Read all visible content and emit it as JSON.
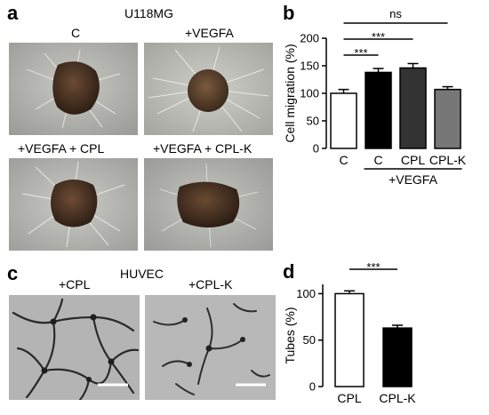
{
  "panels": {
    "a": {
      "label": "a",
      "cell_line": "U118MG",
      "conditions": [
        "C",
        "+VEGFA",
        "+VEGFA + CPL",
        "+VEGFA + CPL-K"
      ]
    },
    "b": {
      "label": "b",
      "sig_ns": "ns",
      "sig_1": "***",
      "sig_2": "***",
      "group_label": "+VEGFA"
    },
    "c": {
      "label": "c",
      "cell_line": "HUVEC",
      "conditions": [
        "+CPL",
        "+CPL-K"
      ]
    },
    "d": {
      "label": "d",
      "sig": "***"
    }
  },
  "chart_data": [
    {
      "type": "bar",
      "panel": "b",
      "categories": [
        "C",
        "C",
        "CPL",
        "CPL-K"
      ],
      "values": [
        100,
        138,
        146,
        107
      ],
      "errors": [
        7,
        7,
        8,
        5
      ],
      "bar_colors": [
        "#ffffff",
        "#000000",
        "#333333",
        "#777777"
      ],
      "ylabel": "Cell migration (%)",
      "ylim": [
        0,
        200
      ],
      "yticks": [
        0,
        50,
        100,
        150,
        200
      ],
      "yticklabels": [
        "0",
        "50",
        "100",
        "150",
        "200"
      ]
    },
    {
      "type": "bar",
      "panel": "d",
      "categories": [
        "CPL",
        "CPL-K"
      ],
      "values": [
        100,
        63
      ],
      "errors": [
        3,
        3
      ],
      "bar_colors": [
        "#ffffff",
        "#000000"
      ],
      "ylabel": "Tubes (%)",
      "ylim": [
        0,
        110
      ],
      "yticks": [
        0,
        50,
        100
      ],
      "yticklabels": [
        "0",
        "50",
        "100"
      ]
    }
  ]
}
